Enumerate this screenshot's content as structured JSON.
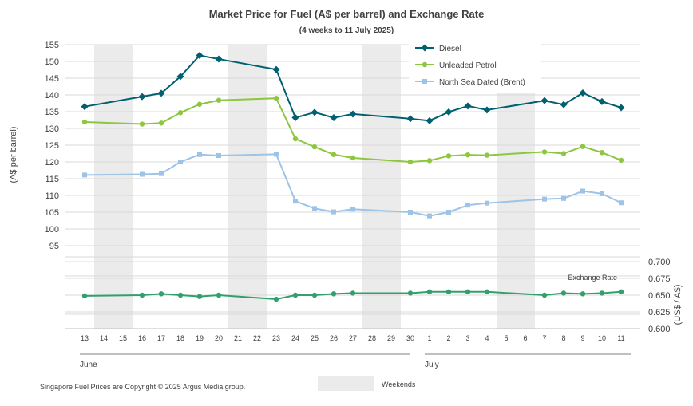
{
  "chart_data": {
    "type": "line",
    "title": "Market Price for Fuel (A$ per barrel) and Exchange Rate",
    "subtitle": "(4 weeks to 11 July 2025)",
    "ylabel": "(A$ per barrel)",
    "ylabel_right": "(US$ / A$)",
    "ylim": [
      95,
      155
    ],
    "y_ticks": [
      95,
      100,
      105,
      110,
      115,
      120,
      125,
      130,
      135,
      140,
      145,
      150,
      155
    ],
    "ylim_right": [
      0.6,
      0.7
    ],
    "y_ticks_right": [
      "0.600",
      "0.625",
      "0.650",
      "0.675",
      "0.700"
    ],
    "categories": [
      "13",
      "14",
      "15",
      "16",
      "17",
      "18",
      "19",
      "20",
      "21",
      "22",
      "23",
      "24",
      "25",
      "26",
      "27",
      "28",
      "29",
      "30",
      "1",
      "2",
      "3",
      "4",
      "5",
      "6",
      "7",
      "8",
      "9",
      "10",
      "11"
    ],
    "month_labels": [
      {
        "label": "June",
        "start_index": 0,
        "end_index": 17
      },
      {
        "label": "July",
        "start_index": 18,
        "end_index": 28
      }
    ],
    "weekend_ranges": [
      [
        1,
        2
      ],
      [
        8,
        9
      ],
      [
        15,
        16
      ],
      [
        22,
        23
      ]
    ],
    "series": [
      {
        "name": "Diesel",
        "color": "#00606f",
        "marker": "diamond",
        "values": [
          136.5,
          null,
          null,
          139.5,
          140.5,
          145.5,
          151.8,
          150.7,
          null,
          null,
          147.6,
          133.2,
          134.8,
          133.2,
          134.3,
          null,
          null,
          132.9,
          132.3,
          134.9,
          136.7,
          135.5,
          null,
          null,
          138.3,
          137.1,
          140.6,
          138.0,
          136.2
        ]
      },
      {
        "name": "Unleaded Petrol",
        "color": "#8dc63f",
        "marker": "circle",
        "values": [
          131.9,
          null,
          null,
          131.3,
          131.6,
          134.7,
          137.2,
          138.4,
          null,
          null,
          139.0,
          126.9,
          124.5,
          122.2,
          121.2,
          null,
          null,
          120.0,
          120.4,
          121.8,
          122.1,
          122.0,
          null,
          null,
          123.0,
          122.5,
          124.6,
          122.8,
          120.5
        ]
      },
      {
        "name": "North Sea Dated (Brent)",
        "color": "#9dc3e6",
        "marker": "square",
        "values": [
          116.1,
          null,
          null,
          116.3,
          116.5,
          120.0,
          122.2,
          121.9,
          null,
          null,
          122.3,
          108.3,
          106.1,
          105.1,
          105.9,
          null,
          null,
          105.0,
          103.9,
          105.0,
          107.1,
          107.7,
          null,
          null,
          108.9,
          109.1,
          111.3,
          110.5,
          107.8
        ]
      },
      {
        "name": "Exchange Rate",
        "axis": "right",
        "color": "#33a06b",
        "marker": "circle",
        "values": [
          0.649,
          null,
          null,
          0.65,
          0.652,
          0.65,
          0.648,
          0.65,
          null,
          null,
          0.644,
          0.65,
          0.65,
          0.652,
          0.653,
          null,
          null,
          0.653,
          0.655,
          0.655,
          0.655,
          0.655,
          null,
          null,
          0.65,
          0.653,
          0.652,
          0.653,
          0.655
        ]
      }
    ],
    "legend": {
      "placement": "top-right",
      "weekend_label": "Weekends"
    },
    "exchange_label": "Exchange Rate",
    "copyright": "Singapore Fuel Prices are Copyright © 2025 Argus Media group."
  }
}
